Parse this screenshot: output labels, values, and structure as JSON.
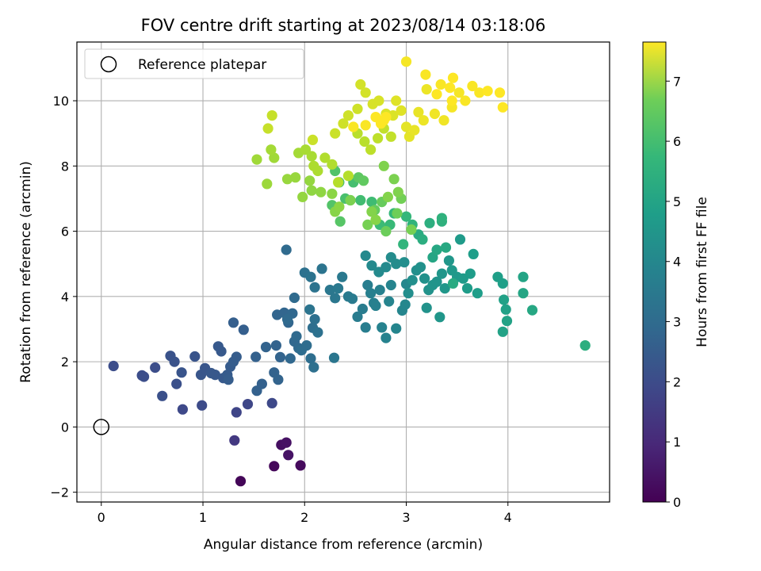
{
  "chart_data": {
    "type": "scatter",
    "title": "FOV centre drift starting at 2023/08/14 03:18:06",
    "xlabel": "Angular distance from reference (arcmin)",
    "ylabel": "Rotation from reference (arcmin)",
    "xlim": [
      -0.24,
      5.0
    ],
    "ylim": [
      -2.3,
      11.8
    ],
    "xticks": [
      0,
      1,
      2,
      3,
      4
    ],
    "yticks": [
      -2,
      0,
      2,
      4,
      6,
      8,
      10
    ],
    "grid": true,
    "legend": {
      "position": "top-left",
      "entries": [
        "Reference platepar"
      ]
    },
    "reference_point": {
      "x": 0,
      "y": 0,
      "label": "Reference platepar"
    },
    "colorbar": {
      "label": "Hours from first FF file",
      "min": 0,
      "max": 7.65,
      "ticks": [
        0,
        1,
        2,
        3,
        4,
        5,
        6,
        7
      ],
      "colormap": "viridis"
    },
    "points": [
      [
        1.37,
        -1.66,
        0.1
      ],
      [
        1.7,
        -1.2,
        0.15
      ],
      [
        1.96,
        -1.18,
        0.2
      ],
      [
        1.77,
        -0.55,
        0.3
      ],
      [
        1.82,
        -0.48,
        0.35
      ],
      [
        1.84,
        -0.86,
        0.4
      ],
      [
        1.31,
        -0.41,
        1.3
      ],
      [
        1.33,
        0.45,
        1.6
      ],
      [
        1.44,
        0.7,
        1.65
      ],
      [
        1.68,
        0.73,
        1.7
      ],
      [
        0.8,
        0.54,
        1.7
      ],
      [
        0.99,
        0.66,
        1.75
      ],
      [
        0.12,
        1.87,
        1.8
      ],
      [
        0.4,
        1.58,
        1.8
      ],
      [
        0.42,
        1.54,
        1.85
      ],
      [
        0.53,
        1.82,
        1.85
      ],
      [
        0.6,
        0.95,
        1.9
      ],
      [
        0.74,
        1.32,
        1.9
      ],
      [
        0.68,
        2.18,
        1.95
      ],
      [
        0.72,
        2.0,
        1.95
      ],
      [
        0.79,
        1.67,
        2.0
      ],
      [
        0.92,
        2.16,
        2.0
      ],
      [
        0.98,
        1.6,
        2.05
      ],
      [
        1.02,
        1.8,
        2.05
      ],
      [
        1.08,
        1.65,
        2.1
      ],
      [
        1.12,
        1.6,
        2.1
      ],
      [
        1.15,
        2.47,
        2.15
      ],
      [
        1.18,
        2.32,
        2.15
      ],
      [
        1.2,
        1.5,
        2.15
      ],
      [
        1.24,
        1.6,
        2.2
      ],
      [
        1.27,
        1.85,
        2.2
      ],
      [
        1.3,
        2.0,
        2.25
      ],
      [
        1.33,
        2.15,
        2.25
      ],
      [
        1.25,
        1.45,
        2.25
      ],
      [
        1.3,
        3.2,
        2.3
      ],
      [
        1.4,
        2.98,
        2.3
      ],
      [
        1.52,
        2.15,
        2.35
      ],
      [
        1.53,
        1.11,
        2.35
      ],
      [
        1.58,
        1.32,
        2.35
      ],
      [
        1.62,
        2.45,
        2.4
      ],
      [
        1.7,
        1.67,
        2.4
      ],
      [
        1.72,
        2.5,
        2.4
      ],
      [
        1.74,
        1.45,
        2.45
      ],
      [
        1.76,
        2.14,
        2.45
      ],
      [
        1.73,
        3.44,
        2.5
      ],
      [
        1.8,
        3.5,
        2.5
      ],
      [
        1.84,
        3.2,
        2.5
      ],
      [
        1.86,
        2.1,
        2.55
      ],
      [
        1.88,
        3.48,
        2.55
      ],
      [
        1.9,
        2.62,
        2.55
      ],
      [
        1.92,
        2.78,
        2.6
      ],
      [
        1.94,
        2.42,
        2.6
      ],
      [
        1.83,
        3.3,
        2.6
      ],
      [
        1.9,
        3.96,
        2.65
      ],
      [
        1.82,
        5.43,
        2.65
      ],
      [
        1.97,
        2.35,
        2.7
      ],
      [
        2.02,
        2.5,
        2.7
      ],
      [
        2.06,
        2.1,
        2.75
      ],
      [
        2.08,
        3.04,
        2.75
      ],
      [
        2.1,
        3.3,
        2.8
      ],
      [
        2.09,
        1.83,
        2.8
      ],
      [
        2.13,
        2.9,
        2.85
      ],
      [
        2.0,
        4.73,
        2.85
      ],
      [
        2.06,
        4.6,
        2.9
      ],
      [
        2.1,
        4.28,
        2.9
      ],
      [
        2.17,
        4.85,
        2.95
      ],
      [
        2.05,
        3.6,
        2.95
      ],
      [
        2.29,
        2.12,
        3.0
      ],
      [
        2.25,
        4.2,
        3.05
      ],
      [
        2.3,
        3.95,
        3.05
      ],
      [
        2.33,
        4.25,
        3.1
      ],
      [
        2.37,
        4.6,
        3.1
      ],
      [
        2.43,
        4.0,
        3.15
      ],
      [
        2.47,
        3.93,
        3.15
      ],
      [
        2.52,
        3.38,
        3.2
      ],
      [
        2.57,
        3.62,
        3.2
      ],
      [
        2.6,
        3.05,
        3.25
      ],
      [
        2.62,
        4.35,
        3.25
      ],
      [
        2.65,
        4.1,
        3.3
      ],
      [
        2.68,
        3.8,
        3.3
      ],
      [
        2.7,
        3.72,
        3.35
      ],
      [
        2.74,
        4.2,
        3.35
      ],
      [
        2.76,
        3.05,
        3.4
      ],
      [
        2.8,
        2.73,
        3.4
      ],
      [
        2.83,
        3.85,
        3.45
      ],
      [
        2.85,
        4.35,
        3.45
      ],
      [
        2.9,
        3.02,
        3.5
      ],
      [
        2.96,
        3.57,
        3.5
      ],
      [
        2.99,
        3.75,
        3.55
      ],
      [
        3.0,
        4.38,
        3.55
      ],
      [
        2.6,
        5.25,
        3.6
      ],
      [
        2.66,
        4.95,
        3.6
      ],
      [
        2.73,
        4.75,
        3.65
      ],
      [
        2.8,
        4.9,
        3.65
      ],
      [
        2.85,
        5.2,
        3.7
      ],
      [
        2.9,
        5.0,
        3.7
      ],
      [
        2.98,
        5.05,
        3.75
      ],
      [
        3.02,
        4.1,
        3.75
      ],
      [
        3.06,
        4.5,
        3.8
      ],
      [
        3.1,
        4.8,
        3.8
      ],
      [
        3.14,
        4.9,
        3.85
      ],
      [
        3.18,
        4.55,
        3.85
      ],
      [
        3.2,
        3.65,
        3.9
      ],
      [
        3.22,
        4.2,
        3.9
      ],
      [
        3.26,
        4.35,
        3.95
      ],
      [
        3.3,
        4.45,
        3.95
      ],
      [
        3.33,
        3.37,
        4.0
      ],
      [
        3.35,
        4.7,
        4.0
      ],
      [
        3.38,
        4.25,
        4.05
      ],
      [
        3.42,
        5.1,
        4.05
      ],
      [
        3.45,
        4.8,
        4.1
      ],
      [
        3.5,
        4.6,
        4.1
      ],
      [
        3.53,
        5.75,
        4.15
      ],
      [
        3.56,
        4.55,
        4.15
      ],
      [
        3.6,
        4.25,
        4.2
      ],
      [
        3.63,
        4.7,
        4.2
      ],
      [
        3.66,
        5.3,
        4.25
      ],
      [
        3.7,
        4.1,
        4.25
      ],
      [
        3.9,
        4.6,
        4.3
      ],
      [
        3.95,
        4.4,
        4.3
      ],
      [
        3.96,
        3.9,
        4.35
      ],
      [
        3.98,
        3.6,
        4.35
      ],
      [
        3.95,
        2.92,
        4.4
      ],
      [
        3.99,
        3.25,
        4.4
      ],
      [
        4.15,
        4.6,
        4.45
      ],
      [
        4.15,
        4.1,
        4.5
      ],
      [
        4.24,
        3.58,
        4.55
      ],
      [
        4.76,
        2.5,
        4.8
      ],
      [
        3.26,
        5.2,
        4.5
      ],
      [
        3.3,
        5.43,
        4.55
      ],
      [
        3.39,
        5.5,
        4.6
      ],
      [
        3.46,
        4.4,
        4.65
      ],
      [
        3.12,
        5.9,
        4.7
      ],
      [
        3.16,
        5.75,
        4.75
      ],
      [
        3.23,
        6.25,
        4.8
      ],
      [
        3.35,
        6.3,
        4.85
      ],
      [
        3.35,
        6.4,
        4.9
      ],
      [
        3.06,
        6.2,
        4.95
      ],
      [
        2.97,
        5.6,
        5.0
      ],
      [
        3.0,
        6.45,
        5.05
      ],
      [
        2.88,
        6.55,
        5.1
      ],
      [
        2.84,
        6.2,
        5.15
      ],
      [
        2.74,
        6.2,
        5.2
      ],
      [
        2.66,
        6.9,
        5.25
      ],
      [
        2.55,
        6.95,
        5.3
      ],
      [
        2.48,
        7.5,
        5.35
      ],
      [
        2.4,
        7.0,
        5.4
      ],
      [
        2.34,
        7.5,
        5.45
      ],
      [
        2.3,
        7.85,
        5.5
      ],
      [
        2.27,
        6.8,
        5.55
      ],
      [
        2.35,
        6.3,
        5.6
      ],
      [
        2.45,
        6.95,
        5.65
      ],
      [
        2.53,
        7.65,
        5.7
      ],
      [
        2.58,
        7.55,
        5.75
      ],
      [
        2.69,
        6.65,
        5.8
      ],
      [
        2.76,
        6.9,
        5.85
      ],
      [
        2.8,
        6.0,
        5.9
      ],
      [
        2.91,
        6.55,
        5.95
      ],
      [
        2.95,
        7.0,
        6.0
      ],
      [
        3.05,
        6.05,
        6.05
      ],
      [
        2.62,
        6.2,
        6.05
      ],
      [
        2.45,
        6.95,
        6.1
      ],
      [
        2.88,
        7.6,
        6.1
      ],
      [
        2.92,
        7.2,
        6.15
      ],
      [
        2.78,
        8.0,
        6.15
      ],
      [
        2.82,
        7.05,
        6.2
      ],
      [
        2.66,
        6.6,
        6.2
      ],
      [
        2.7,
        6.35,
        6.25
      ],
      [
        2.3,
        6.6,
        6.25
      ],
      [
        2.34,
        6.75,
        6.3
      ],
      [
        2.27,
        7.15,
        6.3
      ],
      [
        2.16,
        7.2,
        6.35
      ],
      [
        2.07,
        7.25,
        6.35
      ],
      [
        2.05,
        7.55,
        6.4
      ],
      [
        1.98,
        7.05,
        6.4
      ],
      [
        1.91,
        7.65,
        6.45
      ],
      [
        1.83,
        7.6,
        6.45
      ],
      [
        1.63,
        7.45,
        6.5
      ],
      [
        1.53,
        8.2,
        6.55
      ],
      [
        1.7,
        8.25,
        6.55
      ],
      [
        1.67,
        8.5,
        6.6
      ],
      [
        1.94,
        8.4,
        6.6
      ],
      [
        2.01,
        8.5,
        6.65
      ],
      [
        2.07,
        8.3,
        6.65
      ],
      [
        2.09,
        8.0,
        6.7
      ],
      [
        2.13,
        7.85,
        6.7
      ],
      [
        2.2,
        8.25,
        6.75
      ],
      [
        2.27,
        8.05,
        6.75
      ],
      [
        2.33,
        7.5,
        6.8
      ],
      [
        2.43,
        7.7,
        6.8
      ],
      [
        2.52,
        9.0,
        6.85
      ],
      [
        2.59,
        8.75,
        6.85
      ],
      [
        2.65,
        8.5,
        6.9
      ],
      [
        2.72,
        8.85,
        6.9
      ],
      [
        2.78,
        9.15,
        6.95
      ],
      [
        2.85,
        8.9,
        6.95
      ],
      [
        1.64,
        9.15,
        7.0
      ],
      [
        1.68,
        9.55,
        7.0
      ],
      [
        2.08,
        8.8,
        7.05
      ],
      [
        2.3,
        9.0,
        7.05
      ],
      [
        2.38,
        9.3,
        7.1
      ],
      [
        2.43,
        9.55,
        7.1
      ],
      [
        2.52,
        9.75,
        7.1
      ],
      [
        2.55,
        10.5,
        7.15
      ],
      [
        2.6,
        10.25,
        7.15
      ],
      [
        2.67,
        9.9,
        7.2
      ],
      [
        2.73,
        10.0,
        7.2
      ],
      [
        2.8,
        9.6,
        7.25
      ],
      [
        2.87,
        9.55,
        7.25
      ],
      [
        2.9,
        10.0,
        7.3
      ],
      [
        2.95,
        9.7,
        7.3
      ],
      [
        3.0,
        9.2,
        7.35
      ],
      [
        3.03,
        8.9,
        7.35
      ],
      [
        3.08,
        9.1,
        7.4
      ],
      [
        3.12,
        9.65,
        7.4
      ],
      [
        3.17,
        9.4,
        7.45
      ],
      [
        3.2,
        10.35,
        7.45
      ],
      [
        3.28,
        9.6,
        7.5
      ],
      [
        3.37,
        9.4,
        7.5
      ],
      [
        3.45,
        9.8,
        7.55
      ],
      [
        3.52,
        10.25,
        7.55
      ],
      [
        3.58,
        10.0,
        7.6
      ],
      [
        3.65,
        10.45,
        7.6
      ],
      [
        3.72,
        10.25,
        7.6
      ],
      [
        3.8,
        10.3,
        7.65
      ],
      [
        3.92,
        10.25,
        7.65
      ],
      [
        3.95,
        9.8,
        7.65
      ],
      [
        3.0,
        11.2,
        7.55
      ],
      [
        3.19,
        10.8,
        7.6
      ],
      [
        3.34,
        10.5,
        7.6
      ],
      [
        3.46,
        10.7,
        7.65
      ],
      [
        3.43,
        10.4,
        7.65
      ],
      [
        3.45,
        10.0,
        7.65
      ],
      [
        3.3,
        10.2,
        7.65
      ],
      [
        2.48,
        9.2,
        7.6
      ],
      [
        2.6,
        9.25,
        7.6
      ],
      [
        2.7,
        9.5,
        7.65
      ],
      [
        2.75,
        9.3,
        7.65
      ],
      [
        2.8,
        9.5,
        7.65
      ],
      [
        2.78,
        9.4,
        7.65
      ]
    ]
  }
}
